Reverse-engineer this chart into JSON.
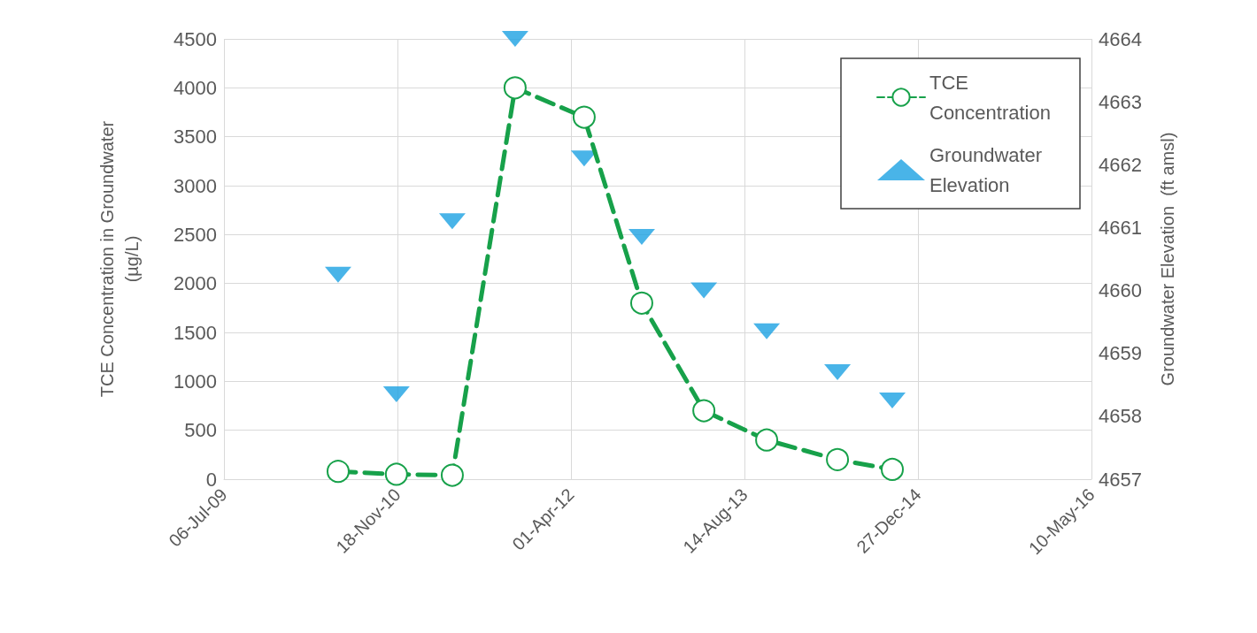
{
  "chart_data": {
    "type": "line",
    "ylabel": "TCE Concentration in Groundwater\n(µg/L)",
    "y2label": "Groundwater Elevation  (ft amsl)",
    "x": [
      "2010-05-31",
      "2010-11-15",
      "2011-04-25",
      "2011-10-23",
      "2012-05-09",
      "2012-10-22",
      "2013-04-19",
      "2013-10-17",
      "2014-05-09",
      "2014-10-14"
    ],
    "series": [
      {
        "name": "TCE Concentration",
        "color": "#17a14a",
        "marker": "circle",
        "line_style": "dashed",
        "values": [
          80,
          50,
          40,
          4000,
          3700,
          1800,
          700,
          400,
          200,
          100
        ]
      },
      {
        "name": "Groundwater Elevation",
        "type": "scatter",
        "axis": "y2",
        "color": "#1ba1e2",
        "marker": "triangle",
        "values": [
          4660.25,
          4658.35,
          4661.1,
          4664,
          4662.1,
          4660.85,
          4660,
          4659.35,
          4658.7,
          4658.25
        ]
      }
    ],
    "xlim": [
      "2009-07-06",
      "2016-05-10"
    ],
    "xticks": [
      {
        "value": "2009-07-06",
        "label": "06-Jul-09"
      },
      {
        "value": "2010-11-18",
        "label": "18-Nov-10"
      },
      {
        "value": "2012-04-01",
        "label": "01-Apr-12"
      },
      {
        "value": "2013-08-14",
        "label": "14-Aug-13"
      },
      {
        "value": "2014-12-27",
        "label": "27-Dec-14"
      },
      {
        "value": "2016-05-10",
        "label": "10-May-16"
      }
    ],
    "ylim": [
      0,
      4500
    ],
    "yticks": [
      0,
      500,
      1000,
      1500,
      2000,
      2500,
      3000,
      3500,
      4000,
      4500
    ],
    "y2lim": [
      4657,
      4664
    ],
    "y2ticks": [
      4657,
      4658,
      4659,
      4660,
      4661,
      4662,
      4663,
      4664
    ],
    "grid": true,
    "legend": "top right"
  }
}
